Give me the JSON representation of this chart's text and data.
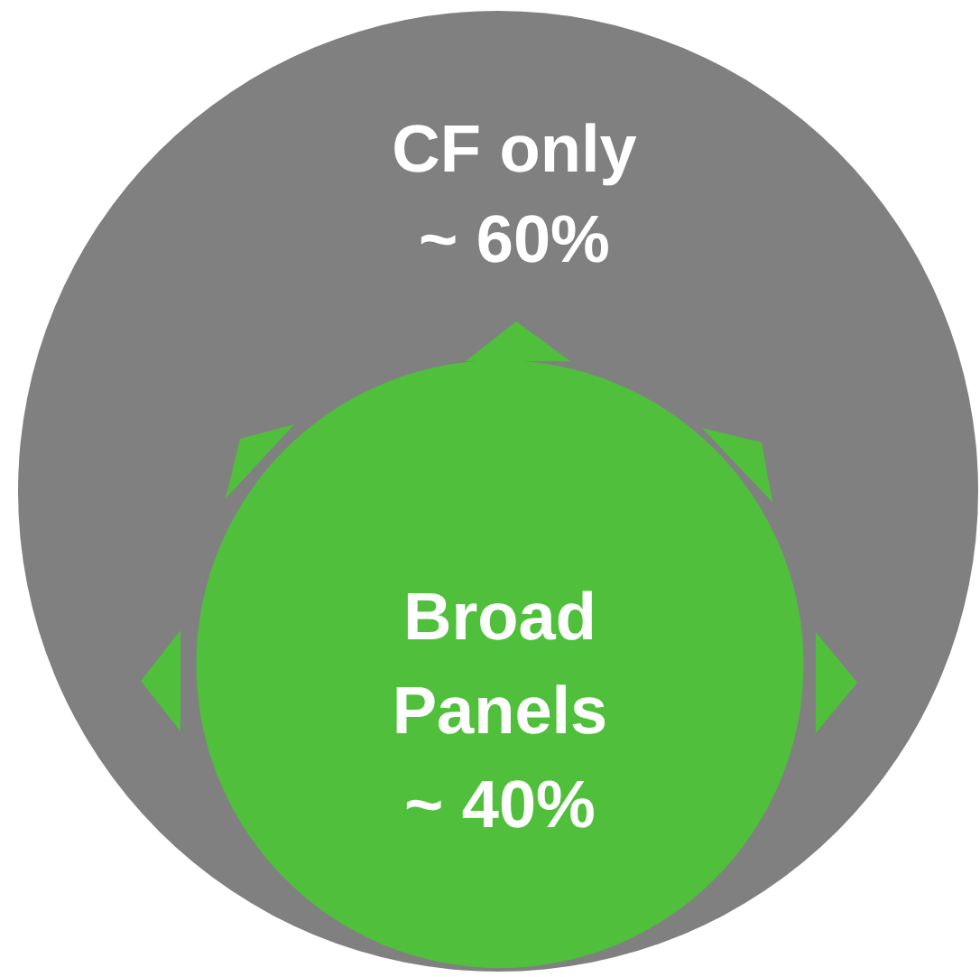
{
  "chart_data": {
    "type": "other",
    "categories": [
      "CF only",
      "Broad Panels"
    ],
    "values": [
      60,
      40
    ],
    "value_labels": [
      "~ 60%",
      "~ 40%"
    ],
    "colors": [
      "#808080",
      "#50c03c"
    ]
  }
}
